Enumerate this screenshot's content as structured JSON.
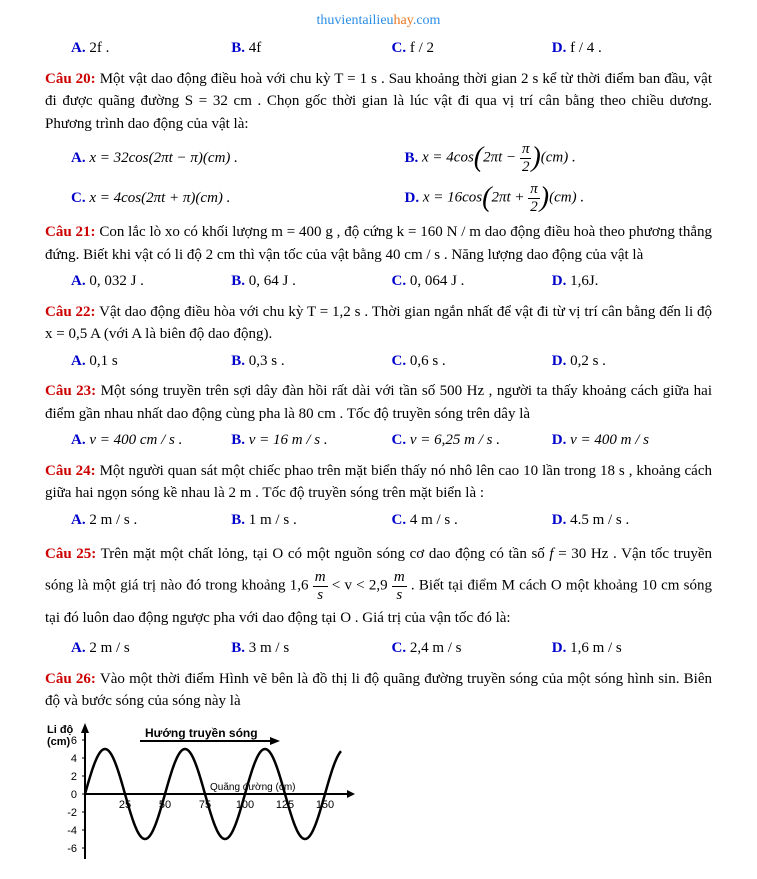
{
  "header": {
    "part1": "thuvientailieu",
    "part2": "hay",
    "part3": ".com"
  },
  "q19opts": {
    "a": "2f .",
    "b": "4f",
    "c": "f / 2",
    "d": "f / 4 ."
  },
  "q20": {
    "label": "Câu 20:",
    "text": " Một vật dao động điều hoà với chu kỳ T = 1 s . Sau khoảng thời gian 2 s kể từ thời điểm ban đầu, vật đi được quãng đường S = 32 cm . Chọn gốc thời gian là lúc vật đi qua vị trí cân bằng theo chiều dương. Phương trình dao động của vật là:",
    "a": "x = 32cos(2πt − π)(cm) .",
    "c": "x = 4cos(2πt + π)(cm) ."
  },
  "q21": {
    "label": "Câu 21:",
    "text": " Con lắc lò xo có khối lượng m = 400 g , độ cứng k = 160 N / m dao động điều hoà theo phương thẳng đứng. Biết khi vật có li độ 2 cm thì vận tốc của vật bằng 40 cm / s . Năng lượng dao động của vật là",
    "a": "0, 032 J .",
    "b": "0, 64 J .",
    "c": "0, 064 J .",
    "d": "1,6J."
  },
  "q22": {
    "label": "Câu 22:",
    "text": " Vật dao động điều hòa với chu kỳ T = 1,2 s . Thời gian ngắn nhất để vật đi từ vị trí cân bằng đến li độ x = 0,5 A (với A là biên độ dao động).",
    "a": "0,1 s",
    "b": "0,3 s .",
    "c": "0,6 s .",
    "d": "0,2 s ."
  },
  "q23": {
    "label": "Câu 23:",
    "text": " Một sóng truyền trên sợi dây đàn hồi rất dài với tần số 500 Hz , người ta thấy khoảng cách giữa hai điểm gần nhau nhất dao động cùng pha là 80 cm . Tốc độ truyền sóng trên dây là",
    "a": "v = 400 cm / s .",
    "b": "v = 16 m / s .",
    "c": "v = 6,25 m / s .",
    "d": "v = 400 m / s"
  },
  "q24": {
    "label": "Câu 24:",
    "text": " Một người quan sát một chiếc phao trên mặt biển thấy nó nhô lên cao 10 lần trong 18 s , khoảng cách giữa hai ngọn sóng kề nhau là 2 m . Tốc độ truyền sóng trên mặt biển là :",
    "a": "2 m / s .",
    "b": "1 m / s .",
    "c": "4 m / s .",
    "d": "4.5 m / s ."
  },
  "q25": {
    "label": "Câu 25:",
    "text1": " Trên mặt một chất lỏng, tại O có một nguồn sóng cơ dao động có tần số ",
    "text2": " = 30 Hz . Vận tốc truyền sóng là một giá trị nào đó trong khoảng 1,6 ",
    "text3": " < v < 2,9 ",
    "text4": " . Biết tại điểm M cách O một khoảng 10 cm sóng tại đó luôn dao động ngược pha với dao động tại O . Giá trị của vận tốc đó là:",
    "a": "2 m / s",
    "b": "3 m / s",
    "c": "2,4 m / s",
    "d": "1,6 m / s"
  },
  "q26": {
    "label": "Câu 26:",
    "text": " Vào một thời điểm Hình vẽ bên là đồ thị li độ quãng đường truyền sóng của một sóng hình sin. Biên độ và bước sóng của sóng này là"
  },
  "wave": {
    "ylabel": "Li độ\n(cm)",
    "xlabel": "Quãng đường    (cm)",
    "arrow_label": "Hướng truyền sóng",
    "y_ticks": [
      "6",
      "4",
      "2",
      "0",
      "-2",
      "-4",
      "-6"
    ],
    "y_values": [
      6,
      4,
      2,
      0,
      -2,
      -4,
      -6
    ],
    "x_ticks": [
      "25",
      "50",
      "75",
      "100",
      "125",
      "150"
    ],
    "x_values": [
      25,
      50,
      75,
      100,
      125,
      150
    ],
    "amplitude": 5,
    "wavelength": 50,
    "x_max": 160,
    "line_color": "#000000",
    "background": "#ffffff",
    "stroke_width": 2.5
  },
  "labels": {
    "A": "A.",
    "B": "B.",
    "C": "C.",
    "D": "D."
  }
}
